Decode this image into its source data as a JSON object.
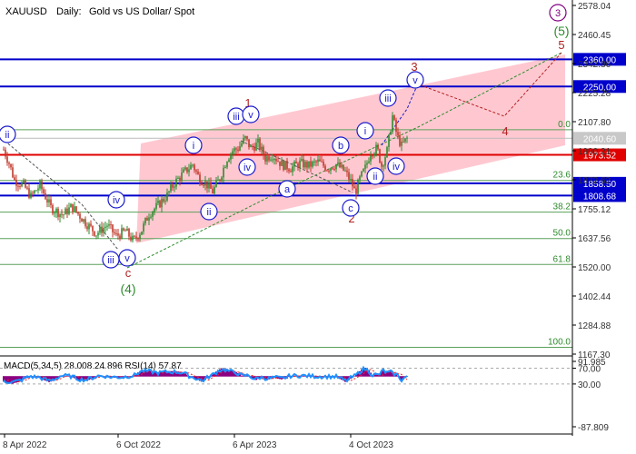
{
  "header": {
    "symbol": "XAUUSD",
    "timeframe": "Daily:",
    "description": "Gold vs US Dollar/ Spot"
  },
  "colors": {
    "candle_up": "#2e8b2e",
    "candle_down": "#c0392b",
    "channel_fill": "#ffb6c1",
    "level_blue": "#0000cc",
    "level_red": "#e00000",
    "fib_line": "#5aa05a",
    "wave_purple": "#800080",
    "wave_green": "#2e8b2e",
    "wave_red": "#b22222",
    "wave_blue": "#1a1acc",
    "macd_hist": "#8b0080",
    "rsi_line": "#1e90ff",
    "signal_line": "#ff2020"
  },
  "chart_data": [
    {
      "type": "candlestick",
      "title": "XAUUSD, Daily:  Gold vs US Dollar/ Spot",
      "yticks": [
        "2578.04",
        "2460.45",
        "2342.86",
        "2225.28",
        "2107.80",
        "1990.21",
        "1872.62",
        "1755.12",
        "1637.56",
        "1520.00",
        "1402.44",
        "1284.88",
        "1167.30"
      ],
      "xticks": [
        "8 Apr 2022",
        "6 Oct 2022",
        "6 Apr 2023",
        "4 Oct 2023"
      ],
      "ylim": [
        1167.3,
        2578.04
      ],
      "price_path": [
        [
          0,
          1995
        ],
        [
          6,
          1940
        ],
        [
          12,
          1870
        ],
        [
          22,
          1850
        ],
        [
          30,
          1805
        ],
        [
          40,
          1850
        ],
        [
          52,
          1760
        ],
        [
          65,
          1730
        ],
        [
          75,
          1765
        ],
        [
          90,
          1700
        ],
        [
          102,
          1655
        ],
        [
          114,
          1690
        ],
        [
          124,
          1645
        ],
        [
          134,
          1665
        ],
        [
          143,
          1625
        ],
        [
          152,
          1670
        ],
        [
          160,
          1735
        ],
        [
          170,
          1770
        ],
        [
          180,
          1810
        ],
        [
          188,
          1860
        ],
        [
          198,
          1900
        ],
        [
          208,
          1935
        ],
        [
          215,
          1880
        ],
        [
          222,
          1860
        ],
        [
          230,
          1825
        ],
        [
          238,
          1880
        ],
        [
          246,
          1960
        ],
        [
          252,
          1990
        ],
        [
          258,
          2000
        ],
        [
          266,
          2040
        ],
        [
          272,
          2000
        ],
        [
          280,
          2020
        ],
        [
          288,
          1960
        ],
        [
          296,
          1975
        ],
        [
          306,
          1935
        ],
        [
          316,
          1920
        ],
        [
          326,
          1940
        ],
        [
          336,
          1930
        ],
        [
          346,
          1945
        ],
        [
          356,
          1920
        ],
        [
          366,
          1935
        ],
        [
          376,
          1905
        ],
        [
          383,
          1860
        ],
        [
          387,
          1820
        ],
        [
          392,
          1875
        ],
        [
          398,
          1920
        ],
        [
          404,
          1985
        ],
        [
          411,
          2000
        ],
        [
          416,
          1930
        ],
        [
          422,
          1990
        ],
        [
          428,
          2130
        ],
        [
          433,
          2050
        ],
        [
          438,
          2010
        ],
        [
          444,
          2040
        ]
      ],
      "levels": [
        {
          "label": "2360.00",
          "value": 2360.0,
          "color": "blue"
        },
        {
          "label": "2250.00",
          "value": 2250.0,
          "color": "blue"
        },
        {
          "label": "2040.60",
          "value": 2040.6,
          "color": "gray"
        },
        {
          "label": "1973.52",
          "value": 1973.52,
          "color": "red"
        },
        {
          "label": "1858.50",
          "value": 1858.5,
          "color": "blue"
        },
        {
          "label": "1808.68",
          "value": 1808.68,
          "color": "blue"
        }
      ],
      "fib_levels": [
        {
          "label": "0.0",
          "value": 2075
        },
        {
          "label": "23.6",
          "value": 1870
        },
        {
          "label": "38.2",
          "value": 1742
        },
        {
          "label": "50.0",
          "value": 1635
        },
        {
          "label": "61.8",
          "value": 1530
        },
        {
          "label": "100.0",
          "value": 1195
        }
      ],
      "wave_labels": [
        {
          "text": "3",
          "style": "circled",
          "color": "purple"
        },
        {
          "text": "(5)",
          "style": "plain",
          "color": "green"
        },
        {
          "text": "5",
          "style": "plain",
          "color": "red"
        },
        {
          "text": "3",
          "style": "plain",
          "color": "red"
        },
        {
          "text": "4",
          "style": "plain",
          "color": "red"
        },
        {
          "text": "1",
          "style": "plain",
          "color": "red"
        },
        {
          "text": "2",
          "style": "plain",
          "color": "red"
        },
        {
          "text": "c",
          "style": "plain",
          "color": "red"
        },
        {
          "text": "(4)",
          "style": "plain",
          "color": "green"
        },
        {
          "text": "ii",
          "style": "circled",
          "color": "blue"
        },
        {
          "text": "iv",
          "style": "circled",
          "color": "blue"
        },
        {
          "text": "iii",
          "style": "circled",
          "color": "blue"
        },
        {
          "text": "v",
          "style": "circled",
          "color": "blue"
        },
        {
          "text": "i",
          "style": "circled",
          "color": "blue"
        },
        {
          "text": "ii",
          "style": "circled",
          "color": "blue"
        },
        {
          "text": "iii",
          "style": "circled",
          "color": "blue"
        },
        {
          "text": "v",
          "style": "circled",
          "color": "blue"
        },
        {
          "text": "iv",
          "style": "circled",
          "color": "blue"
        },
        {
          "text": "a",
          "style": "circled",
          "color": "blue"
        },
        {
          "text": "b",
          "style": "circled",
          "color": "blue"
        },
        {
          "text": "c",
          "style": "circled",
          "color": "blue"
        },
        {
          "text": "i",
          "style": "circled",
          "color": "blue"
        },
        {
          "text": "ii",
          "style": "circled",
          "color": "blue"
        },
        {
          "text": "iii",
          "style": "circled",
          "color": "blue"
        },
        {
          "text": "iv",
          "style": "circled",
          "color": "blue"
        },
        {
          "text": "v",
          "style": "circled",
          "color": "blue"
        }
      ]
    },
    {
      "type": "line",
      "title": "MACD(5,34,5) 28.008 24.896 RSI(14) 57.87",
      "yticks": [
        "91.985",
        "70.00",
        "30.00",
        "-87.809"
      ],
      "ylim": [
        -87.809,
        91.985
      ],
      "series": [
        {
          "name": "MACD(5,34,5)",
          "kind": "histogram"
        },
        {
          "name": "RSI(14)",
          "kind": "line",
          "last": 57.87
        }
      ]
    }
  ]
}
